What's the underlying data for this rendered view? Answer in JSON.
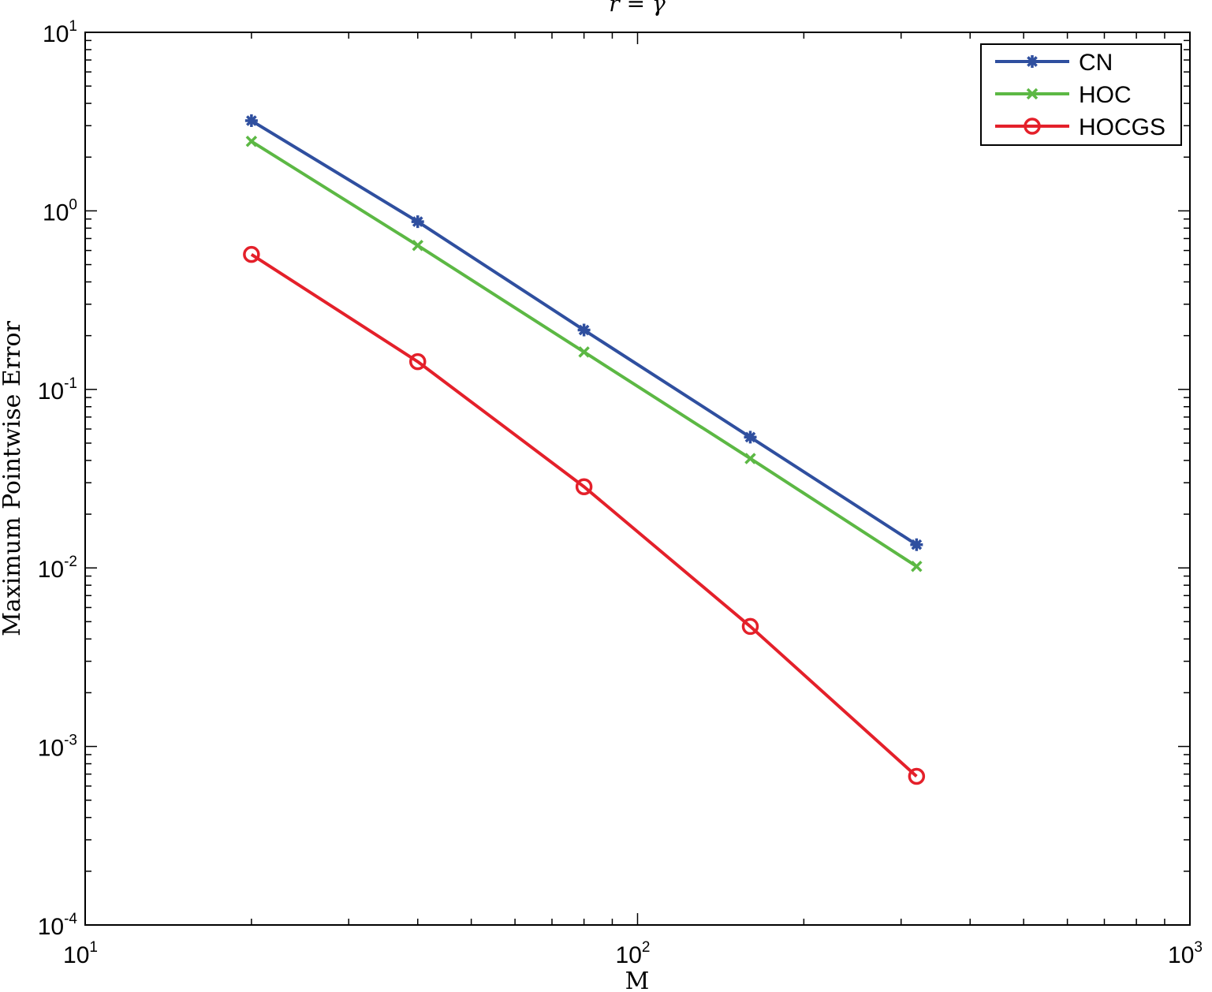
{
  "chart_data": {
    "type": "line",
    "title": "r = γ",
    "xlabel": "M",
    "ylabel": "Maximum Pointwise Error",
    "xscale": "log",
    "yscale": "log",
    "xlim": [
      10,
      1000
    ],
    "ylim": [
      0.0001,
      10
    ],
    "grid": false,
    "legend_position": "top-right",
    "x_ticks": [
      {
        "base": "10",
        "exp": "1"
      },
      {
        "base": "10",
        "exp": "2"
      },
      {
        "base": "10",
        "exp": "3"
      }
    ],
    "y_ticks": [
      {
        "base": "10",
        "exp": "-4"
      },
      {
        "base": "10",
        "exp": "-3"
      },
      {
        "base": "10",
        "exp": "-2"
      },
      {
        "base": "10",
        "exp": "-1"
      },
      {
        "base": "10",
        "exp": "0"
      },
      {
        "base": "10",
        "exp": "1"
      }
    ],
    "x": [
      20,
      40,
      80,
      160,
      320
    ],
    "series": [
      {
        "name": "CN",
        "color": "#2f4f9f",
        "marker": "asterisk",
        "values": [
          3.2,
          0.87,
          0.215,
          0.054,
          0.0135
        ]
      },
      {
        "name": "HOC",
        "color": "#5cb844",
        "marker": "x",
        "values": [
          2.45,
          0.64,
          0.162,
          0.041,
          0.0102
        ]
      },
      {
        "name": "HOCGS",
        "color": "#e4202a",
        "marker": "circle",
        "values": [
          0.57,
          0.143,
          0.0285,
          0.0047,
          0.00068
        ]
      }
    ]
  }
}
